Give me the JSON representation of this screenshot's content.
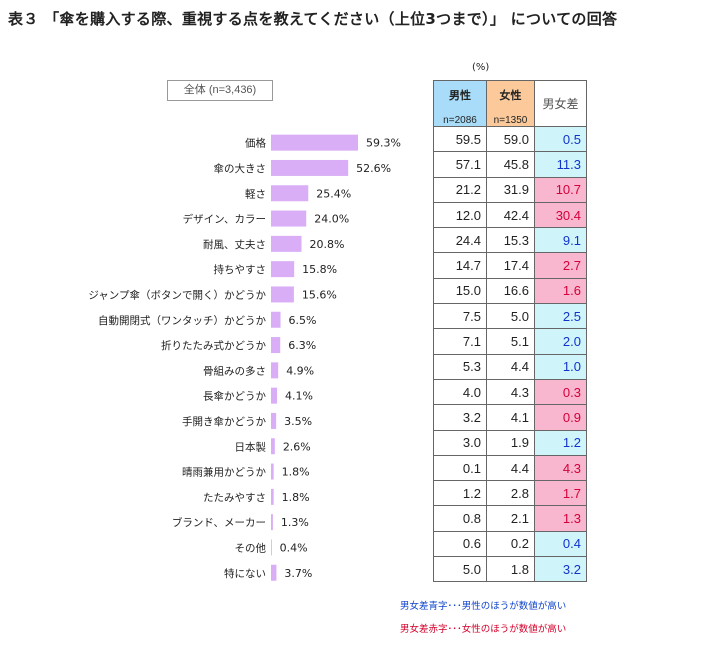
{
  "title": "表３ 「傘を購入する際、重視する点を教えてください（上位3つまで）」 についての回答",
  "unit": "(%)",
  "total_label": "全体 (n=3,436)",
  "table": {
    "male_label": "男性",
    "male_n": "n=2086",
    "female_label": "女性",
    "female_n": "n=1350",
    "diff_label": "男女差"
  },
  "colors": {
    "bar": "#d9aef6",
    "male_header": "#a8dcf8",
    "female_header": "#fbc99a",
    "diff_blue_bg": "#cff5fb",
    "diff_blue_text": "#1133cc",
    "diff_red_bg": "#f9b6cf",
    "diff_red_text": "#d4003a"
  },
  "chart_data": {
    "type": "bar",
    "orientation": "horizontal",
    "categories": [
      "価格",
      "傘の大きさ",
      "軽さ",
      "デザイン、カラー",
      "耐風、丈夫さ",
      "持ちやすさ",
      "ジャンプ傘（ボタンで開く）かどうか",
      "自動開閉式（ワンタッチ）かどうか",
      "折りたたみ式かどうか",
      "骨組みの多さ",
      "長傘かどうか",
      "手開き傘かどうか",
      "日本製",
      "晴雨兼用かどうか",
      "たたみやすさ",
      "ブランド、メーカー",
      "その他",
      "特にない"
    ],
    "values": [
      59.3,
      52.6,
      25.4,
      24.0,
      20.8,
      15.8,
      15.6,
      6.5,
      6.3,
      4.9,
      4.1,
      3.5,
      2.6,
      1.8,
      1.8,
      1.3,
      0.4,
      3.7
    ],
    "value_labels": [
      "59.3%",
      "52.6%",
      "25.4%",
      "24.0%",
      "20.8%",
      "15.8%",
      "15.6%",
      "6.5%",
      "6.3%",
      "4.9%",
      "4.1%",
      "3.5%",
      "2.6%",
      "1.8%",
      "1.8%",
      "1.3%",
      "0.4%",
      "3.7%"
    ],
    "rows": [
      {
        "male": "59.5",
        "female": "59.0",
        "diff": "0.5",
        "dir": "blue"
      },
      {
        "male": "57.1",
        "female": "45.8",
        "diff": "11.3",
        "dir": "blue"
      },
      {
        "male": "21.2",
        "female": "31.9",
        "diff": "10.7",
        "dir": "red"
      },
      {
        "male": "12.0",
        "female": "42.4",
        "diff": "30.4",
        "dir": "red"
      },
      {
        "male": "24.4",
        "female": "15.3",
        "diff": "9.1",
        "dir": "blue"
      },
      {
        "male": "14.7",
        "female": "17.4",
        "diff": "2.7",
        "dir": "red"
      },
      {
        "male": "15.0",
        "female": "16.6",
        "diff": "1.6",
        "dir": "red"
      },
      {
        "male": "7.5",
        "female": "5.0",
        "diff": "2.5",
        "dir": "blue"
      },
      {
        "male": "7.1",
        "female": "5.1",
        "diff": "2.0",
        "dir": "blue"
      },
      {
        "male": "5.3",
        "female": "4.4",
        "diff": "1.0",
        "dir": "blue"
      },
      {
        "male": "4.0",
        "female": "4.3",
        "diff": "0.3",
        "dir": "red"
      },
      {
        "male": "3.2",
        "female": "4.1",
        "diff": "0.9",
        "dir": "red"
      },
      {
        "male": "3.0",
        "female": "1.9",
        "diff": "1.2",
        "dir": "blue"
      },
      {
        "male": "0.1",
        "female": "4.4",
        "diff": "4.3",
        "dir": "red"
      },
      {
        "male": "1.2",
        "female": "2.8",
        "diff": "1.7",
        "dir": "red"
      },
      {
        "male": "0.8",
        "female": "2.1",
        "diff": "1.3",
        "dir": "red"
      },
      {
        "male": "0.6",
        "female": "0.2",
        "diff": "0.4",
        "dir": "blue"
      },
      {
        "male": "5.0",
        "female": "1.8",
        "diff": "3.2",
        "dir": "blue"
      }
    ]
  },
  "notes": {
    "blue": "男女差青字･･･男性のほうが数値が高い",
    "red": "男女差赤字･･･女性のほうが数値が高い"
  }
}
